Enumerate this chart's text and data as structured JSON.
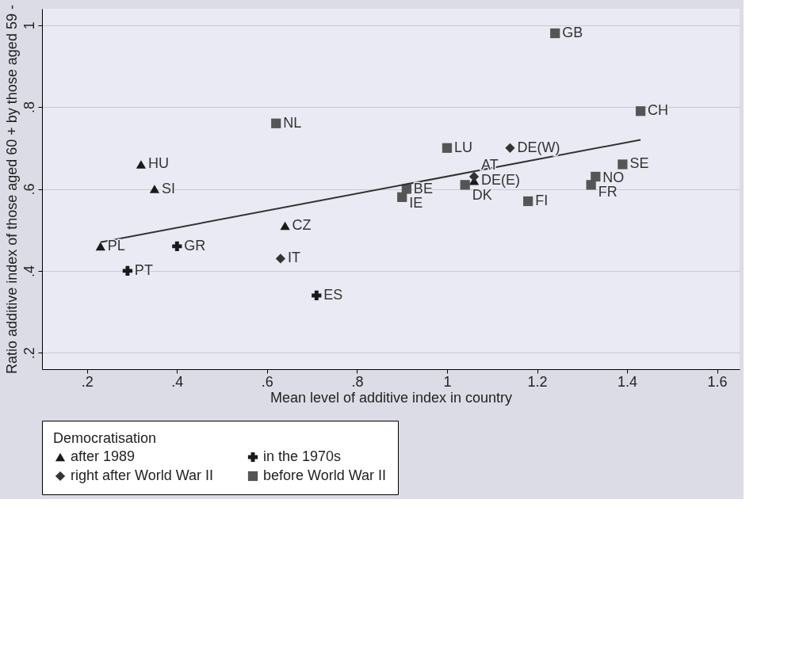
{
  "chart_data": {
    "type": "scatter",
    "xlabel": "Mean level of additive index in country",
    "ylabel": "Ratio additive index of those aged 60 + by those aged 59 -",
    "legend_title": "Democratisation",
    "xlim": [
      0.1,
      1.65
    ],
    "ylim": [
      0.16,
      1.04
    ],
    "xticks": [
      {
        "value": 0.2,
        "label": ".2"
      },
      {
        "value": 0.4,
        "label": ".4"
      },
      {
        "value": 0.6,
        "label": ".6"
      },
      {
        "value": 0.8,
        "label": ".8"
      },
      1,
      1.2,
      1.4,
      1.6
    ],
    "yticks": [
      {
        "value": 0.2,
        "label": ".2"
      },
      {
        "value": 0.4,
        "label": ".4"
      },
      {
        "value": 0.6,
        "label": ".6"
      },
      {
        "value": 0.8,
        "label": ".8"
      },
      1
    ],
    "grid": "y",
    "legend": "bottom",
    "series": [
      {
        "name": "after 1989",
        "color": "#1a1a1a",
        "marker": "triangle",
        "x": [
          0.23,
          0.32,
          0.35,
          0.64,
          1.06
        ],
        "values": [
          0.46,
          0.66,
          0.6,
          0.51,
          0.62
        ]
      },
      {
        "name": "in the 1970s",
        "color": "#1a1a1a",
        "marker": "cross",
        "x": [
          0.4,
          0.29,
          0.71
        ],
        "values": [
          0.46,
          0.4,
          0.34
        ]
      },
      {
        "name": "right after World War II",
        "color": "#333333",
        "marker": "diamond",
        "x": [
          0.63,
          1.06,
          1.14
        ],
        "values": [
          0.43,
          0.63,
          0.7
        ]
      },
      {
        "name": "before World War II",
        "color": "#555555",
        "marker": "square",
        "x": [
          0.62,
          1.24,
          1.43,
          1.0,
          1.39,
          1.33,
          1.32,
          1.04,
          0.91,
          0.9,
          1.18
        ],
        "values": [
          0.76,
          0.98,
          0.79,
          0.7,
          0.66,
          0.63,
          0.61,
          0.61,
          0.6,
          0.58,
          0.57
        ]
      },
      {
        "type": "line",
        "color": "#333333",
        "x": [
          0.23,
          1.43
        ],
        "values": [
          0.47,
          0.72
        ]
      }
    ],
    "annotations": [
      {
        "text": "PL",
        "x": 0.23,
        "y": 0.46
      },
      {
        "text": "HU",
        "x": 0.32,
        "y": 0.66
      },
      {
        "text": "SI",
        "x": 0.35,
        "y": 0.6
      },
      {
        "text": "CZ",
        "x": 0.64,
        "y": 0.51
      },
      {
        "text": "DE(E)",
        "x": 1.06,
        "y": 0.62
      },
      {
        "text": "GR",
        "x": 0.4,
        "y": 0.46
      },
      {
        "text": "PT",
        "x": 0.29,
        "y": 0.4
      },
      {
        "text": "ES",
        "x": 0.71,
        "y": 0.34
      },
      {
        "text": "IT",
        "x": 0.63,
        "y": 0.43
      },
      {
        "text": "AT",
        "x": 1.06,
        "y": 0.63
      },
      {
        "text": "DE(W)",
        "x": 1.14,
        "y": 0.7
      },
      {
        "text": "NL",
        "x": 0.62,
        "y": 0.76
      },
      {
        "text": "GB",
        "x": 1.24,
        "y": 0.98
      },
      {
        "text": "CH",
        "x": 1.43,
        "y": 0.79
      },
      {
        "text": "LU",
        "x": 1.0,
        "y": 0.7
      },
      {
        "text": "SE",
        "x": 1.39,
        "y": 0.66
      },
      {
        "text": "NO",
        "x": 1.33,
        "y": 0.63
      },
      {
        "text": "FR",
        "x": 1.32,
        "y": 0.61
      },
      {
        "text": "DK",
        "x": 1.04,
        "y": 0.61
      },
      {
        "text": "BE",
        "x": 0.91,
        "y": 0.6
      },
      {
        "text": "IE",
        "x": 0.9,
        "y": 0.58
      },
      {
        "text": "FI",
        "x": 1.18,
        "y": 0.57
      }
    ]
  }
}
